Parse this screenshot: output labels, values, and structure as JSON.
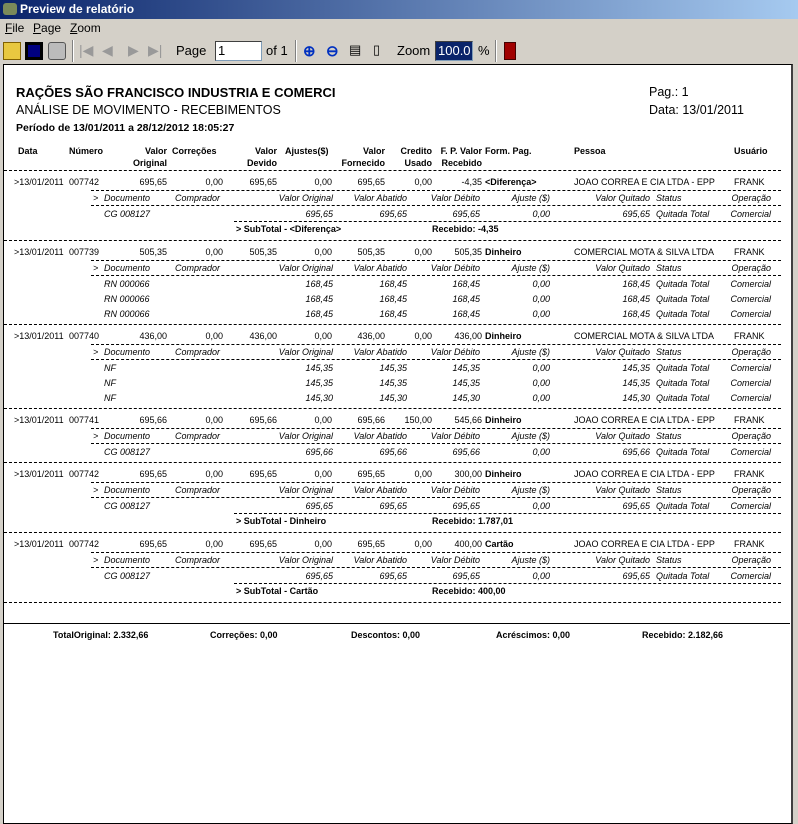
{
  "window": {
    "title": "Preview de relatório"
  },
  "menu": [
    "File",
    "Page",
    "Zoom"
  ],
  "toolbar": {
    "page_label": "Page",
    "page_value": "1",
    "of_label": "of 1",
    "zoom_label": "Zoom",
    "zoom_value": "100.0",
    "percent": "%"
  },
  "report": {
    "company": "RAÇÕES SÃO FRANCISCO INDUSTRIA E COMERCI",
    "title": "ANÁLISE DE MOVIMENTO - RECEBIMENTOS",
    "period": "Período de  13/01/2011  a  28/12/2012 18:05:27",
    "page": "Pag.: 1",
    "date": "Data: 13/01/2011",
    "columns": [
      "Data",
      "Número",
      "Valor",
      "Original",
      "Correções",
      "Valor",
      "Devido",
      "Ajustes($)",
      "Valor",
      "Fornecido",
      "Credito",
      "Usado",
      "F. P. Valor",
      "Recebido",
      "Form. Pag.",
      "Pessoa",
      "Usuário"
    ],
    "detail_columns": [
      ">",
      "Documento",
      "Comprador",
      "Valor Original",
      "Valor Abatido",
      "Valor Débito",
      "Ajuste ($)",
      "Valor Quitado",
      "Status",
      "Operação"
    ],
    "groups": [
      {
        "main": [
          ">13/01/2011",
          "007742",
          "695,65",
          "0,00",
          "695,65",
          "0,00",
          "695,65",
          "0,00",
          "-4,35",
          "<Diferença>",
          "JOAO CORREA E CIA LTDA - EPP",
          "FRANK"
        ],
        "details": [
          [
            "CG 008127",
            "",
            "695,65",
            "695,65",
            "695,65",
            "0,00",
            "695,65",
            "Quitada Total",
            "Comercial"
          ]
        ],
        "subtotal": {
          "label": ">  SubTotal  -  <Diferença>",
          "received": "Recebido: -4,35"
        }
      },
      {
        "main": [
          ">13/01/2011",
          "007739",
          "505,35",
          "0,00",
          "505,35",
          "0,00",
          "505,35",
          "0,00",
          "505,35",
          "Dinheiro",
          "COMERCIAL MOTA & SILVA LTDA",
          "FRANK"
        ],
        "details": [
          [
            "RN 000066",
            "",
            "168,45",
            "168,45",
            "168,45",
            "0,00",
            "168,45",
            "Quitada Total",
            "Comercial"
          ],
          [
            "RN 000066",
            "",
            "168,45",
            "168,45",
            "168,45",
            "0,00",
            "168,45",
            "Quitada Total",
            "Comercial"
          ],
          [
            "RN 000066",
            "",
            "168,45",
            "168,45",
            "168,45",
            "0,00",
            "168,45",
            "Quitada Total",
            "Comercial"
          ]
        ]
      },
      {
        "main": [
          ">13/01/2011",
          "007740",
          "436,00",
          "0,00",
          "436,00",
          "0,00",
          "436,00",
          "0,00",
          "436,00",
          "Dinheiro",
          "COMERCIAL MOTA & SILVA LTDA",
          "FRANK"
        ],
        "details": [
          [
            "NF",
            "",
            "145,35",
            "145,35",
            "145,35",
            "0,00",
            "145,35",
            "Quitada Total",
            "Comercial"
          ],
          [
            "NF",
            "",
            "145,35",
            "145,35",
            "145,35",
            "0,00",
            "145,35",
            "Quitada Total",
            "Comercial"
          ],
          [
            "NF",
            "",
            "145,30",
            "145,30",
            "145,30",
            "0,00",
            "145,30",
            "Quitada Total",
            "Comercial"
          ]
        ]
      },
      {
        "main": [
          ">13/01/2011",
          "007741",
          "695,66",
          "0,00",
          "695,66",
          "0,00",
          "695,66",
          "150,00",
          "545,66",
          "Dinheiro",
          "JOAO CORREA E CIA LTDA - EPP",
          "FRANK"
        ],
        "details": [
          [
            "CG 008127",
            "",
            "695,66",
            "695,66",
            "695,66",
            "0,00",
            "695,66",
            "Quitada Total",
            "Comercial"
          ]
        ]
      },
      {
        "main": [
          ">13/01/2011",
          "007742",
          "695,65",
          "0,00",
          "695,65",
          "0,00",
          "695,65",
          "0,00",
          "300,00",
          "Dinheiro",
          "JOAO CORREA E CIA LTDA - EPP",
          "FRANK"
        ],
        "details": [
          [
            "CG 008127",
            "",
            "695,65",
            "695,65",
            "695,65",
            "0,00",
            "695,65",
            "Quitada Total",
            "Comercial"
          ]
        ],
        "subtotal": {
          "label": ">  SubTotal  -  Dinheiro",
          "received": "Recebido: 1.787,01"
        }
      },
      {
        "main": [
          ">13/01/2011",
          "007742",
          "695,65",
          "0,00",
          "695,65",
          "0,00",
          "695,65",
          "0,00",
          "400,00",
          "Cartão",
          "JOAO CORREA E CIA LTDA - EPP",
          "FRANK"
        ],
        "details": [
          [
            "CG 008127",
            "",
            "695,65",
            "695,65",
            "695,65",
            "0,00",
            "695,65",
            "Quitada Total",
            "Comercial"
          ]
        ],
        "subtotal": {
          "label": ">  SubTotal  -  Cartão",
          "received": "Recebido: 400,00"
        }
      }
    ],
    "totals": {
      "original": "TotalOriginal:  2.332,66",
      "corrections": "Correções:  0,00",
      "discounts": "Descontos: 0,00",
      "additions": "Acréscimos:  0,00",
      "received": "Recebido:  2.182,66"
    }
  }
}
